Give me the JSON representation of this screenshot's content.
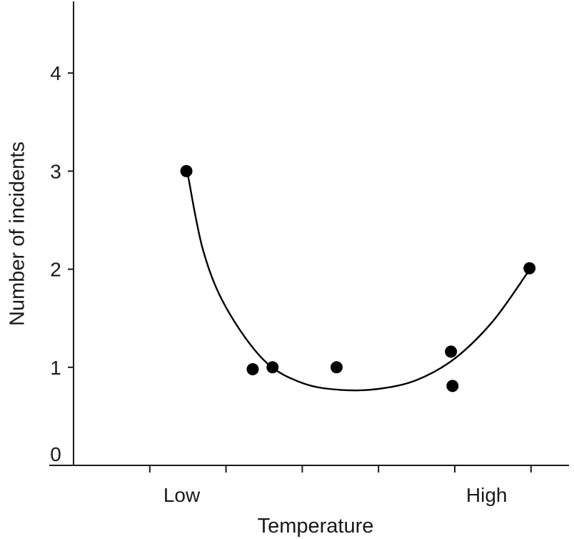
{
  "chart_data": {
    "type": "scatter",
    "title": "",
    "xlabel": "Temperature",
    "ylabel": "Number of incidents",
    "x_range": [
      0,
      6
    ],
    "ylim": [
      0,
      4.7
    ],
    "x_tick_positions": [
      1,
      2,
      3,
      4,
      5,
      6
    ],
    "x_tick_labels": [
      {
        "x": 1.4,
        "label": "Low"
      },
      {
        "x": 5.4,
        "label": "High"
      }
    ],
    "y_ticks": [
      0,
      1,
      2,
      3,
      4
    ],
    "y_tick_labels": [
      "0",
      "1",
      "2",
      "3",
      "4"
    ],
    "grid": false,
    "points": [
      {
        "x": 1.48,
        "y": 3.0
      },
      {
        "x": 2.35,
        "y": 0.98
      },
      {
        "x": 2.61,
        "y": 1.0
      },
      {
        "x": 3.45,
        "y": 1.0
      },
      {
        "x": 4.95,
        "y": 1.16
      },
      {
        "x": 4.97,
        "y": 0.81
      },
      {
        "x": 5.98,
        "y": 2.01
      }
    ],
    "trend_curve": [
      {
        "x": 1.5,
        "y": 2.96
      },
      {
        "x": 1.7,
        "y": 2.19
      },
      {
        "x": 2.0,
        "y": 1.61
      },
      {
        "x": 2.5,
        "y": 1.07
      },
      {
        "x": 3.0,
        "y": 0.84
      },
      {
        "x": 3.5,
        "y": 0.77
      },
      {
        "x": 4.0,
        "y": 0.78
      },
      {
        "x": 4.5,
        "y": 0.87
      },
      {
        "x": 5.0,
        "y": 1.09
      },
      {
        "x": 5.5,
        "y": 1.47
      },
      {
        "x": 5.95,
        "y": 1.96
      }
    ],
    "colors": {
      "ink": "#000000",
      "axis": "#1a1a1a",
      "background": "#ffffff"
    }
  }
}
